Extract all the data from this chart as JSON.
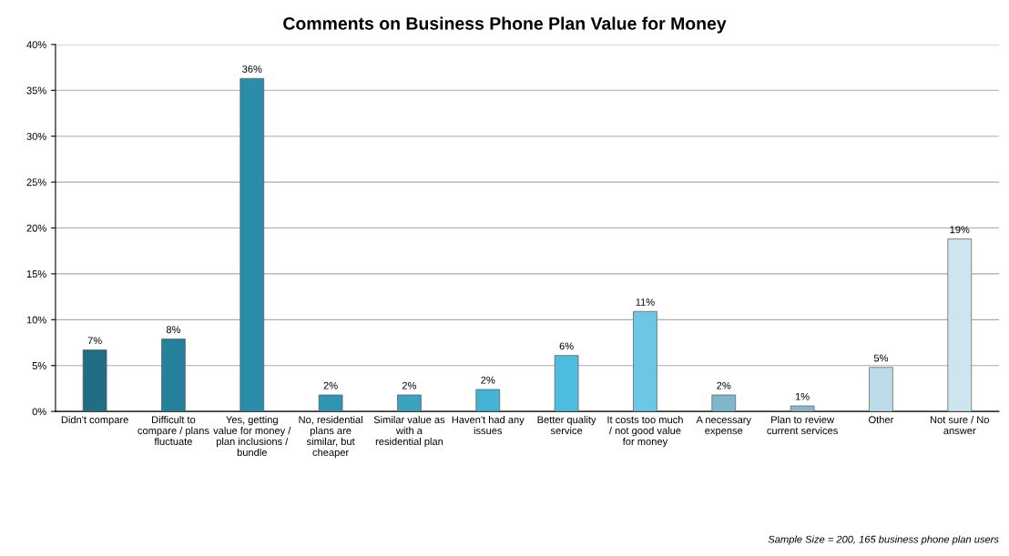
{
  "chart_data": {
    "type": "bar",
    "title": "Comments on Business Phone Plan Value for Money",
    "categories": [
      "Didn't compare",
      "Difficult to compare / plans fluctuate",
      "Yes, getting value for money / plan inclusions / bundle",
      "No, residential plans are similar, but cheaper",
      "Similar value as with a residential plan",
      "Haven't had any issues",
      "Better quality service",
      "It costs too much / not good value for money",
      "A necessary expense",
      "Plan to review current services",
      "Other",
      "Not sure / No answer"
    ],
    "values": [
      6.7,
      7.9,
      36.3,
      1.8,
      1.8,
      2.4,
      6.1,
      10.9,
      1.8,
      0.6,
      4.8,
      18.8
    ],
    "value_labels": [
      "7%",
      "8%",
      "36%",
      "2%",
      "2%",
      "2%",
      "6%",
      "11%",
      "2%",
      "1%",
      "5%",
      "19%"
    ],
    "colors": [
      "#1f6e85",
      "#25819b",
      "#2a8eaa",
      "#2e95b3",
      "#3aa3c0",
      "#45b3d3",
      "#4fbde0",
      "#6cc6e6",
      "#7fb6cc",
      "#8fb8cc",
      "#bcdcea",
      "#cce5f0"
    ],
    "ylim": [
      0,
      40
    ],
    "yticks": [
      {
        "value": 0,
        "label": "0%"
      },
      {
        "value": 5,
        "label": "5%"
      },
      {
        "value": 10,
        "label": "10%"
      },
      {
        "value": 15,
        "label": "15%"
      },
      {
        "value": 20,
        "label": "20%"
      },
      {
        "value": 25,
        "label": "25%"
      },
      {
        "value": 30,
        "label": "30%"
      },
      {
        "value": 35,
        "label": "35%"
      },
      {
        "value": 40,
        "label": "40%"
      }
    ],
    "grid": "y",
    "annotations": [
      "Sample Size = 200, 165 business phone plan users"
    ]
  }
}
